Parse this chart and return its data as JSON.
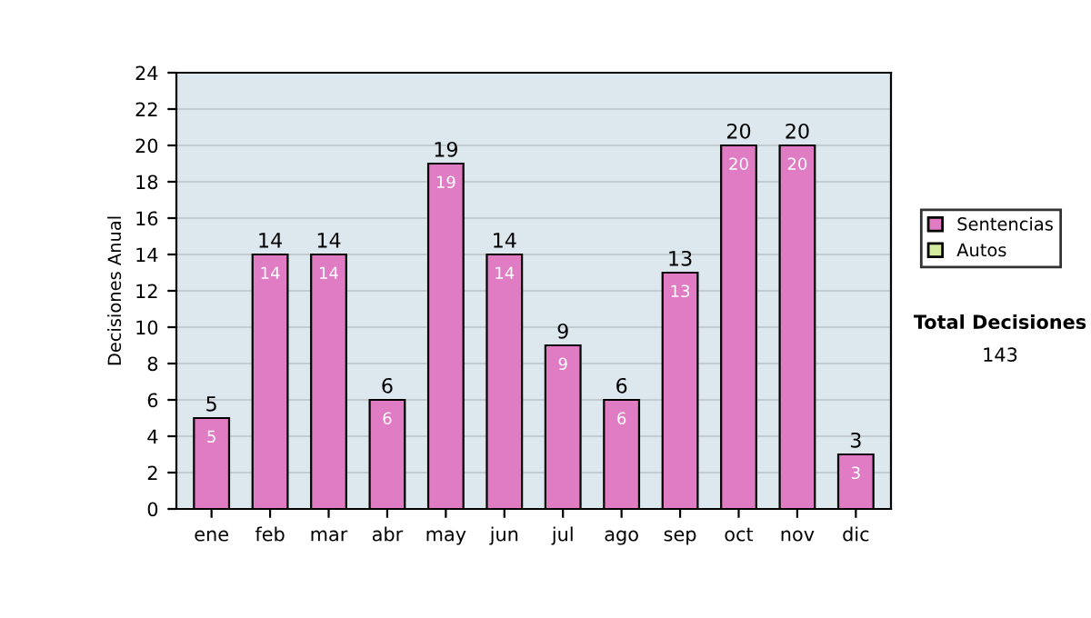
{
  "chart_data": {
    "type": "bar",
    "stacked": true,
    "ylabel": "Decisiones Anual",
    "categories": [
      "ene",
      "feb",
      "mar",
      "abr",
      "may",
      "jun",
      "jul",
      "ago",
      "sep",
      "oct",
      "nov",
      "dic"
    ],
    "series": [
      {
        "name": "Sentencias",
        "color": "#e07cc4",
        "values": [
          5,
          14,
          14,
          6,
          19,
          14,
          9,
          6,
          13,
          20,
          20,
          3
        ],
        "value_labels": [
          "5",
          "14",
          "14",
          "6",
          "19",
          "14",
          "9",
          "6",
          "13",
          "20",
          "20",
          "3"
        ]
      },
      {
        "name": "Autos",
        "color": "#d4eca0",
        "values": [
          0,
          0,
          0,
          0,
          0,
          0,
          0,
          0,
          0,
          0,
          0,
          0
        ]
      }
    ],
    "totals": [
      "5",
      "14",
      "14",
      "6",
      "19",
      "14",
      "9",
      "6",
      "13",
      "20",
      "20",
      "3"
    ],
    "ylim": [
      0,
      24
    ],
    "yticks": [
      0,
      2,
      4,
      6,
      8,
      10,
      12,
      14,
      16,
      18,
      20,
      22,
      24
    ],
    "grid": "y",
    "legend": "right",
    "annotations": [
      "Total Decisiones",
      "143"
    ]
  }
}
